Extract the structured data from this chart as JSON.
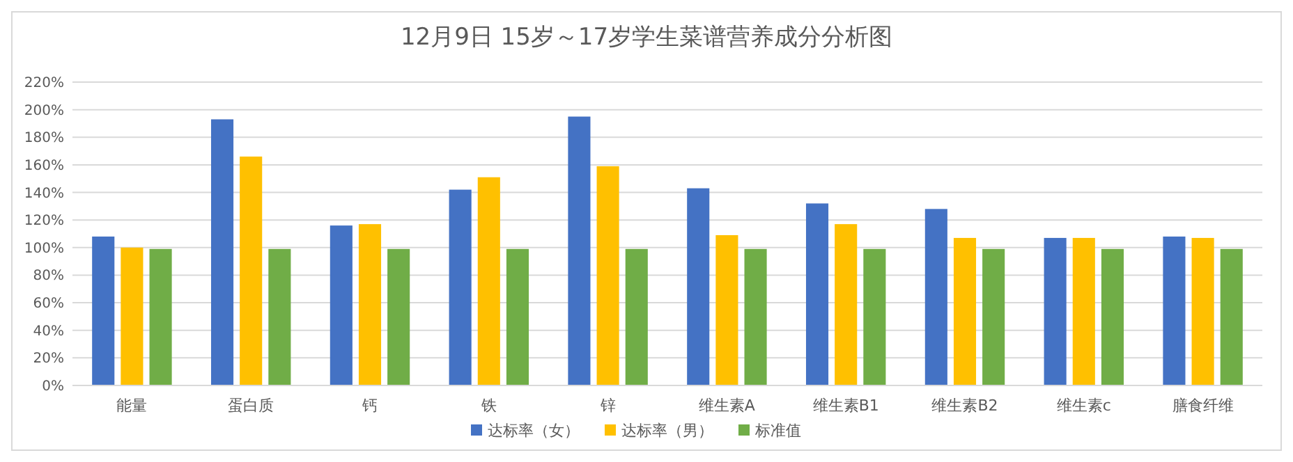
{
  "chart_data": {
    "type": "bar",
    "title": "12月9日 15岁～17岁学生菜谱营养成分分析图",
    "categories": [
      "能量",
      "蛋白质",
      "钙",
      "铁",
      "锌",
      "维生素A",
      "维生素B1",
      "维生素B2",
      "维生素c",
      "膳食纤维"
    ],
    "series": [
      {
        "name": "达标率（女）",
        "color": "#4472c4",
        "values": [
          108,
          193,
          116,
          142,
          195,
          143,
          132,
          128,
          107,
          108
        ]
      },
      {
        "name": "达标率（男）",
        "color": "#ffc000",
        "values": [
          100,
          166,
          117,
          151,
          159,
          109,
          117,
          107,
          107,
          107
        ]
      },
      {
        "name": "标准值",
        "color": "#70ad47",
        "values": [
          99,
          99,
          99,
          99,
          99,
          99,
          99,
          99,
          99,
          99
        ]
      }
    ],
    "ylim": [
      0,
      220
    ],
    "yticks": [
      {
        "value": 0,
        "label": "0%"
      },
      {
        "value": 20,
        "label": "20%"
      },
      {
        "value": 40,
        "label": "40%"
      },
      {
        "value": 60,
        "label": "60%"
      },
      {
        "value": 80,
        "label": "80%"
      },
      {
        "value": 100,
        "label": "100%"
      },
      {
        "value": 120,
        "label": "120%"
      },
      {
        "value": 140,
        "label": "140%"
      },
      {
        "value": 160,
        "label": "160%"
      },
      {
        "value": 180,
        "label": "180%"
      },
      {
        "value": 200,
        "label": "200%"
      },
      {
        "value": 220,
        "label": "220%"
      }
    ],
    "grid": "y",
    "legend": "bottom"
  }
}
